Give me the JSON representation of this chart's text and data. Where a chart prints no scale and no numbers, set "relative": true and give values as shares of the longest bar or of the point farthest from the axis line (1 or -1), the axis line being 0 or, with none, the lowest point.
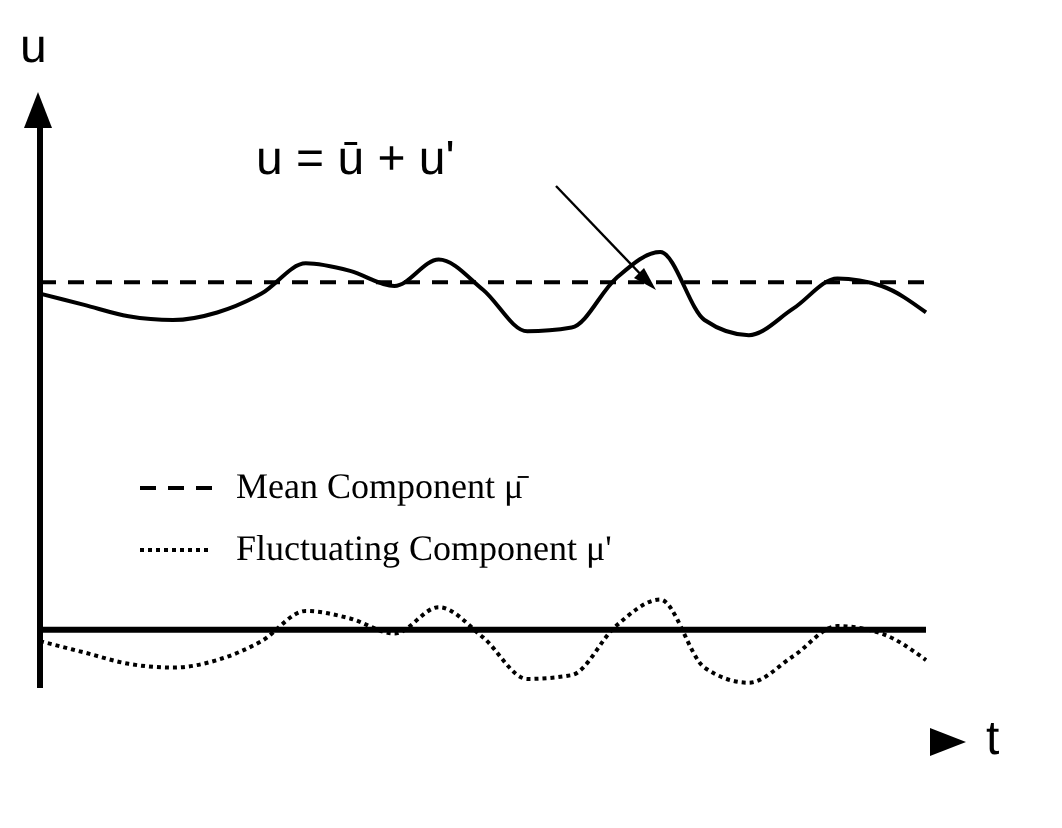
{
  "chart_data": {
    "type": "line",
    "relative": true,
    "xlabel": "t",
    "ylabel": "u",
    "annotations": [
      "u = ū + u'"
    ],
    "legend": "left",
    "categories": [
      null,
      null,
      null,
      null,
      null,
      null,
      null,
      null,
      null,
      null,
      null,
      null,
      null,
      null,
      null,
      null,
      null,
      null,
      null,
      null,
      null
    ],
    "series": [
      {
        "color": "#000000",
        "line_style": "solid",
        "values": [
          0.89,
          0.86,
          0.83,
          0.82,
          0.84,
          0.89,
          0.97,
          0.95,
          0.91,
          0.98,
          0.9,
          0.79,
          0.8,
          0.93,
          1.0,
          0.82,
          0.78,
          0.85,
          0.93,
          0.91,
          0.84
        ]
      },
      {
        "name": "Mean Component μ̄",
        "color": "#000000",
        "line_style": "dashed",
        "values": [
          0.92,
          0.92,
          0.92,
          0.92,
          0.92,
          0.92,
          0.92,
          0.92,
          0.92,
          0.92,
          0.92,
          0.92,
          0.92,
          0.92,
          0.92,
          0.92,
          0.92,
          0.92,
          0.92,
          0.92,
          0.92
        ]
      },
      {
        "name": "Fluctuating Component μ'",
        "color": "#000000",
        "line_style": "dotted",
        "values": [
          -0.03,
          -0.06,
          -0.09,
          -0.1,
          -0.08,
          -0.03,
          0.05,
          0.03,
          -0.01,
          0.06,
          -0.02,
          -0.13,
          -0.12,
          0.01,
          0.08,
          -0.1,
          -0.14,
          -0.07,
          0.01,
          -0.01,
          -0.08
        ]
      }
    ]
  }
}
